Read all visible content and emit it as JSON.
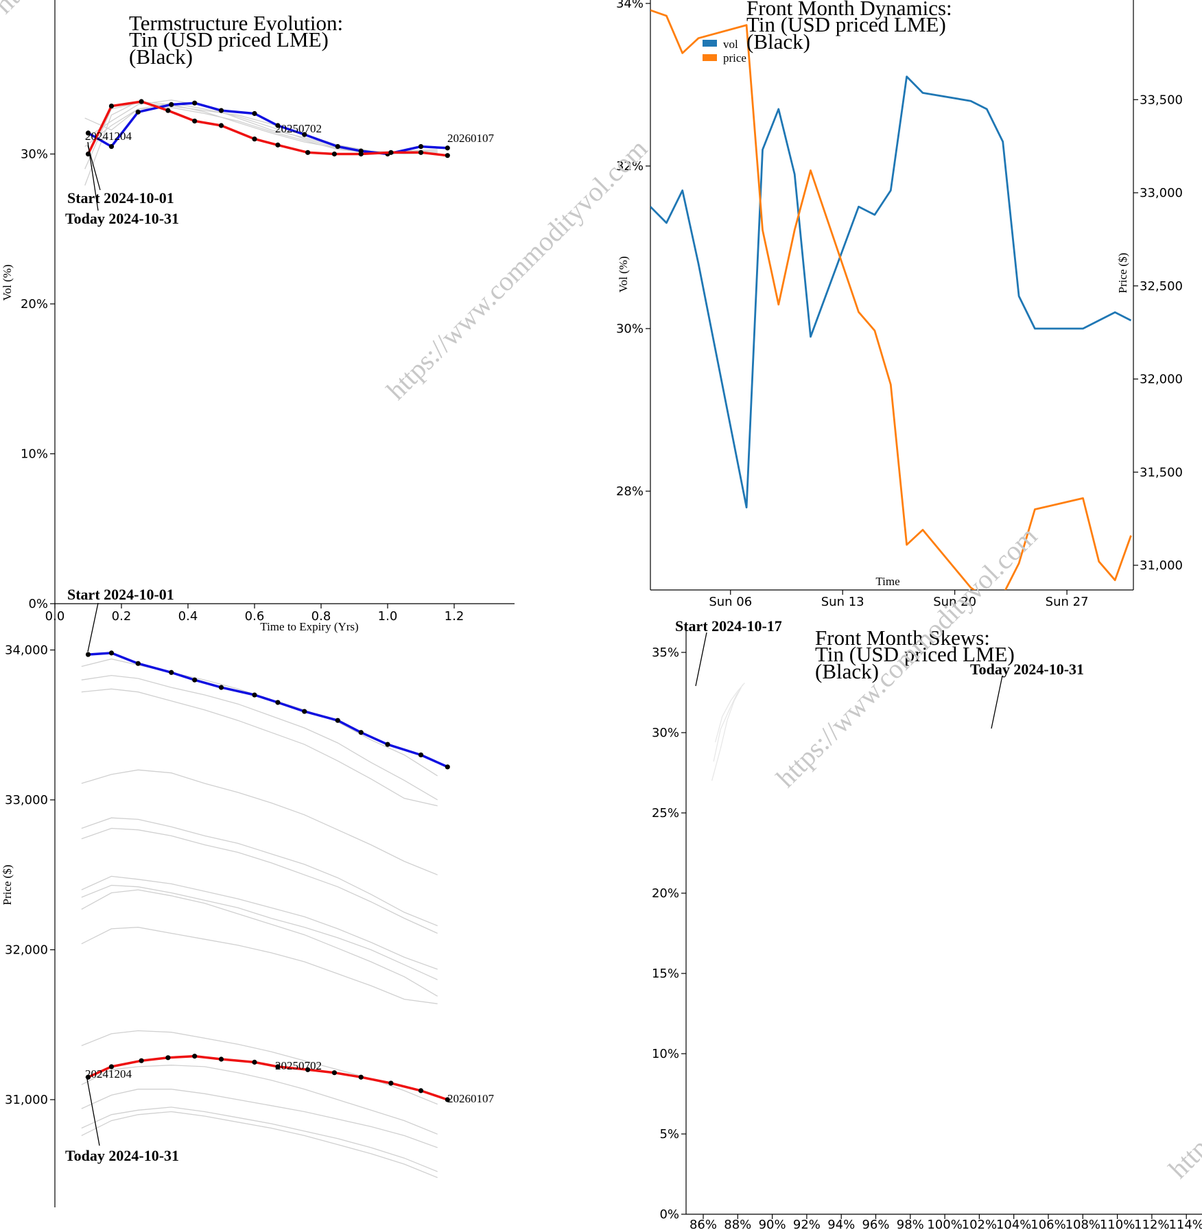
{
  "watermark": "https://www.commodityvol.com",
  "colors": {
    "blue": "#1010e0",
    "red": "#ee1111",
    "vol": "#1f77b4",
    "price": "#ff7f0e",
    "history": "#d0d0d0"
  },
  "chart_data": [
    {
      "id": "term_vol",
      "type": "line",
      "title": [
        "Termstructure Evolution:",
        "Tin (USD priced LME)",
        "(Black)"
      ],
      "xlabel": "Time to Expiry (Yrs)",
      "ylabel": "Vol (%)",
      "xlim": [
        0,
        1.4
      ],
      "ylim": [
        0,
        40
      ],
      "xticks": [
        "0.0",
        "0.2",
        "0.4",
        "0.6",
        "0.8",
        "1.0",
        "1.2"
      ],
      "yticks": [
        "0%",
        "10%",
        "20%",
        "30%"
      ],
      "annotations": {
        "start": "Start 2024-10-01",
        "today": "Today 2024-10-31",
        "first_expiry": "20241204",
        "mid_expiry": "20250702",
        "last_expiry": "20260107"
      },
      "series": [
        {
          "role": "start",
          "x": [
            0.1,
            0.17,
            0.25,
            0.35,
            0.42,
            0.5,
            0.6,
            0.67,
            0.75,
            0.85,
            0.92,
            1.0,
            1.1,
            1.18
          ],
          "values": [
            31.4,
            30.5,
            32.8,
            33.3,
            33.4,
            32.9,
            32.7,
            31.9,
            31.3,
            30.5,
            30.2,
            30.0,
            30.5,
            30.4
          ]
        },
        {
          "role": "today",
          "x": [
            0.1,
            0.17,
            0.26,
            0.34,
            0.42,
            0.5,
            0.6,
            0.67,
            0.76,
            0.84,
            0.92,
            1.01,
            1.1,
            1.18
          ],
          "values": [
            30.0,
            33.2,
            33.5,
            32.9,
            32.2,
            31.9,
            31.0,
            30.6,
            30.1,
            30.0,
            30.0,
            30.1,
            30.1,
            29.9
          ]
        },
        {
          "role": "history",
          "x": [
            0.09,
            0.17,
            0.25,
            0.35,
            0.45,
            0.55,
            0.65,
            0.75,
            0.85,
            0.95,
            1.05,
            1.15
          ],
          "values": [
            29.0,
            33.0,
            33.4,
            33.2,
            32.9,
            32.6,
            32.0,
            31.3,
            30.6,
            30.2,
            30.1,
            30.1
          ]
        },
        {
          "role": "history",
          "x": [
            0.09,
            0.17,
            0.25,
            0.35,
            0.45,
            0.55,
            0.65,
            0.75,
            0.85,
            0.95,
            1.05,
            1.15
          ],
          "values": [
            31.0,
            32.2,
            33.3,
            33.6,
            33.2,
            32.4,
            31.6,
            31.1,
            30.5,
            30.1,
            30.2,
            30.2
          ]
        },
        {
          "role": "history",
          "x": [
            0.09,
            0.17,
            0.25,
            0.35,
            0.45,
            0.55,
            0.65,
            0.75,
            0.85,
            0.95,
            1.05,
            1.15
          ],
          "values": [
            32.4,
            31.6,
            33.0,
            33.1,
            32.7,
            32.2,
            31.5,
            30.9,
            30.3,
            30.1,
            30.2,
            30.3
          ]
        },
        {
          "role": "history",
          "x": [
            0.09,
            0.17,
            0.25,
            0.35,
            0.45,
            0.55,
            0.65,
            0.75,
            0.85,
            0.95,
            1.05,
            1.15
          ],
          "values": [
            27.9,
            32.6,
            33.5,
            33.3,
            32.8,
            32.1,
            31.4,
            30.8,
            30.4,
            30.1,
            30.0,
            30.1
          ]
        },
        {
          "role": "history",
          "x": [
            0.09,
            0.17,
            0.25,
            0.35,
            0.45,
            0.55,
            0.65,
            0.75,
            0.85,
            0.95,
            1.05,
            1.15
          ],
          "values": [
            30.5,
            31.9,
            33.0,
            33.4,
            33.0,
            32.5,
            31.8,
            31.0,
            30.4,
            30.0,
            30.1,
            30.2
          ]
        }
      ]
    },
    {
      "id": "front_dynamics",
      "type": "line",
      "title": [
        "Front Month Dynamics:",
        "Tin (USD priced LME)",
        "(Black)"
      ],
      "xlabel": "Time",
      "ylabel": "Vol (%)",
      "y2label": "Price ($)",
      "legend": [
        "vol",
        "price"
      ],
      "legend_position": "top-left",
      "xticks": [
        "Sun 06",
        "Sun 13",
        "Sun 20",
        "Sun 27"
      ],
      "yticks": [
        "28%",
        "30%",
        "32%",
        "34%"
      ],
      "y2ticks": [
        "31,000",
        "31,500",
        "32,000",
        "32,500",
        "33,000",
        "33,500"
      ],
      "x_dates": [
        "2024-10-01",
        "2024-10-02",
        "2024-10-03",
        "2024-10-04",
        "2024-10-07",
        "2024-10-08",
        "2024-10-09",
        "2024-10-10",
        "2024-10-11",
        "2024-10-14",
        "2024-10-15",
        "2024-10-16",
        "2024-10-17",
        "2024-10-18",
        "2024-10-21",
        "2024-10-22",
        "2024-10-23",
        "2024-10-24",
        "2024-10-25",
        "2024-10-28",
        "2024-10-29",
        "2024-10-30",
        "2024-10-31"
      ],
      "series": [
        {
          "name": "vol",
          "axis": "left",
          "values": [
            31.5,
            31.3,
            31.7,
            30.8,
            27.8,
            32.2,
            32.7,
            31.9,
            29.9,
            31.5,
            31.4,
            31.7,
            33.1,
            32.9,
            32.8,
            32.7,
            32.3,
            30.4,
            30.0,
            30.0,
            30.1,
            30.2,
            30.1
          ]
        },
        {
          "name": "price",
          "axis": "right",
          "values": [
            33980,
            33950,
            33750,
            33830,
            33900,
            32800,
            32400,
            32800,
            33120,
            32360,
            32260,
            31970,
            31110,
            31190,
            30880,
            30820,
            30840,
            31010,
            31300,
            31360,
            31020,
            30920,
            31160
          ]
        }
      ]
    },
    {
      "id": "term_price",
      "type": "line",
      "ylabel": "Price ($)",
      "yticks": [
        "31,000",
        "32,000",
        "33,000",
        "34,000"
      ],
      "annotations": {
        "start": "Start 2024-10-01",
        "today": "Today 2024-10-31",
        "first_expiry": "20241204",
        "mid_expiry": "20250702",
        "last_expiry": "20260107"
      },
      "series": [
        {
          "role": "start",
          "x": [
            0.1,
            0.17,
            0.25,
            0.35,
            0.42,
            0.5,
            0.6,
            0.67,
            0.75,
            0.85,
            0.92,
            1.0,
            1.1,
            1.18
          ],
          "values": [
            33970,
            33980,
            33910,
            33850,
            33800,
            33750,
            33700,
            33650,
            33590,
            33530,
            33450,
            33370,
            33300,
            33220
          ]
        },
        {
          "role": "today",
          "x": [
            0.1,
            0.17,
            0.26,
            0.34,
            0.42,
            0.5,
            0.6,
            0.67,
            0.76,
            0.84,
            0.92,
            1.01,
            1.1,
            1.18
          ],
          "values": [
            31150,
            31220,
            31260,
            31280,
            31290,
            31270,
            31250,
            31220,
            31200,
            31180,
            31150,
            31110,
            31060,
            31000
          ]
        },
        {
          "role": "history",
          "x": [
            0.08,
            0.17,
            0.25,
            0.35,
            0.45,
            0.55,
            0.65,
            0.75,
            0.85,
            0.95,
            1.05,
            1.15
          ],
          "values": [
            33890,
            33940,
            33900,
            33850,
            33800,
            33740,
            33670,
            33600,
            33520,
            33400,
            33300,
            33160
          ]
        },
        {
          "role": "history",
          "x": [
            0.08,
            0.17,
            0.25,
            0.35,
            0.45,
            0.55,
            0.65,
            0.75,
            0.85,
            0.95,
            1.05,
            1.15
          ],
          "values": [
            33800,
            33830,
            33810,
            33750,
            33700,
            33640,
            33560,
            33480,
            33380,
            33250,
            33130,
            33000
          ]
        },
        {
          "role": "history",
          "x": [
            0.08,
            0.17,
            0.25,
            0.35,
            0.45,
            0.55,
            0.65,
            0.75,
            0.85,
            0.95,
            1.05,
            1.15
          ],
          "values": [
            33720,
            33740,
            33720,
            33660,
            33600,
            33530,
            33450,
            33370,
            33260,
            33140,
            33010,
            32960
          ]
        },
        {
          "role": "history",
          "x": [
            0.08,
            0.17,
            0.25,
            0.35,
            0.45,
            0.55,
            0.65,
            0.75,
            0.85,
            0.95,
            1.05,
            1.15
          ],
          "values": [
            33110,
            33170,
            33200,
            33180,
            33110,
            33050,
            32980,
            32900,
            32800,
            32700,
            32590,
            32500
          ]
        },
        {
          "role": "history",
          "x": [
            0.08,
            0.17,
            0.25,
            0.35,
            0.45,
            0.55,
            0.65,
            0.75,
            0.85,
            0.95,
            1.05,
            1.15
          ],
          "values": [
            32810,
            32880,
            32870,
            32820,
            32760,
            32710,
            32640,
            32570,
            32480,
            32370,
            32250,
            32160
          ]
        },
        {
          "role": "history",
          "x": [
            0.08,
            0.17,
            0.25,
            0.35,
            0.45,
            0.55,
            0.65,
            0.75,
            0.85,
            0.95,
            1.05,
            1.15
          ],
          "values": [
            32740,
            32810,
            32800,
            32760,
            32700,
            32650,
            32580,
            32500,
            32420,
            32320,
            32210,
            32110
          ]
        },
        {
          "role": "history",
          "x": [
            0.08,
            0.17,
            0.25,
            0.35,
            0.45,
            0.55,
            0.65,
            0.75,
            0.85,
            0.95,
            1.05,
            1.15
          ],
          "values": [
            32400,
            32490,
            32470,
            32440,
            32390,
            32340,
            32280,
            32220,
            32140,
            32050,
            31950,
            31870
          ]
        },
        {
          "role": "history",
          "x": [
            0.08,
            0.17,
            0.25,
            0.35,
            0.45,
            0.55,
            0.65,
            0.75,
            0.85,
            0.95,
            1.05,
            1.15
          ],
          "values": [
            32350,
            32430,
            32420,
            32380,
            32330,
            32280,
            32210,
            32150,
            32080,
            32000,
            31900,
            31800
          ]
        },
        {
          "role": "history",
          "x": [
            0.08,
            0.17,
            0.25,
            0.35,
            0.45,
            0.55,
            0.65,
            0.75,
            0.85,
            0.95,
            1.05,
            1.15
          ],
          "values": [
            32270,
            32380,
            32400,
            32360,
            32310,
            32240,
            32170,
            32100,
            32010,
            31920,
            31820,
            31690
          ]
        },
        {
          "role": "history",
          "x": [
            0.08,
            0.17,
            0.25,
            0.35,
            0.45,
            0.55,
            0.65,
            0.75,
            0.85,
            0.95,
            1.05,
            1.15
          ],
          "values": [
            32040,
            32140,
            32150,
            32110,
            32070,
            32030,
            31980,
            31920,
            31840,
            31760,
            31670,
            31640
          ]
        },
        {
          "role": "history",
          "x": [
            0.08,
            0.17,
            0.25,
            0.35,
            0.45,
            0.55,
            0.65,
            0.75,
            0.85,
            0.95,
            1.05,
            1.15
          ],
          "values": [
            31360,
            31440,
            31460,
            31450,
            31410,
            31370,
            31320,
            31260,
            31200,
            31140,
            31060,
            30970
          ]
        },
        {
          "role": "history",
          "x": [
            0.08,
            0.17,
            0.25,
            0.35,
            0.45,
            0.55,
            0.65,
            0.75,
            0.85,
            0.95,
            1.05,
            1.15
          ],
          "values": [
            31100,
            31200,
            31220,
            31230,
            31220,
            31180,
            31130,
            31070,
            31000,
            30930,
            30860,
            30770
          ]
        },
        {
          "role": "history",
          "x": [
            0.08,
            0.17,
            0.25,
            0.35,
            0.45,
            0.55,
            0.65,
            0.75,
            0.85,
            0.95,
            1.05,
            1.15
          ],
          "values": [
            30940,
            31030,
            31070,
            31070,
            31040,
            31000,
            30960,
            30920,
            30870,
            30820,
            30760,
            30680
          ]
        },
        {
          "role": "history",
          "x": [
            0.08,
            0.17,
            0.25,
            0.35,
            0.45,
            0.55,
            0.65,
            0.75,
            0.85,
            0.95,
            1.05,
            1.15
          ],
          "values": [
            30810,
            30900,
            30930,
            30950,
            30920,
            30880,
            30840,
            30790,
            30740,
            30680,
            30610,
            30520
          ]
        },
        {
          "role": "history",
          "x": [
            0.08,
            0.17,
            0.25,
            0.35,
            0.45,
            0.55,
            0.65,
            0.75,
            0.85,
            0.95,
            1.05,
            1.15
          ],
          "values": [
            30760,
            30860,
            30900,
            30920,
            30890,
            30850,
            30810,
            30760,
            30700,
            30640,
            30570,
            30480
          ]
        }
      ]
    },
    {
      "id": "front_skews",
      "type": "line",
      "title": [
        "Front Month Skews:",
        "Tin (USD priced LME)",
        "(Black)"
      ],
      "ylim": [
        0,
        36
      ],
      "yticks": [
        "0%",
        "5%",
        "10%",
        "15%",
        "20%",
        "25%",
        "30%",
        "35%"
      ],
      "xticks": [
        "86%",
        "88%",
        "90%",
        "92%",
        "94%",
        "96%",
        "98%",
        "100%",
        "102%",
        "104%",
        "106%",
        "108%",
        "110%",
        "112%",
        "114%"
      ],
      "annotations": {
        "start": "Start 2024-10-17",
        "today": "Today 2024-10-31"
      },
      "series": [
        {
          "role": "history",
          "x": [
            86.5,
            87.0,
            87.4,
            87.8,
            88.2
          ],
          "values": [
            27.0,
            29.0,
            30.8,
            32.0,
            32.8
          ]
        },
        {
          "role": "history",
          "x": [
            86.6,
            87.0,
            87.5,
            87.9,
            88.3
          ],
          "values": [
            28.2,
            30.2,
            31.4,
            32.3,
            33.0
          ]
        },
        {
          "role": "history",
          "x": [
            86.7,
            87.1,
            87.6,
            88.0,
            88.4
          ],
          "values": [
            29.4,
            31.0,
            32.0,
            32.6,
            33.1
          ]
        }
      ]
    }
  ]
}
